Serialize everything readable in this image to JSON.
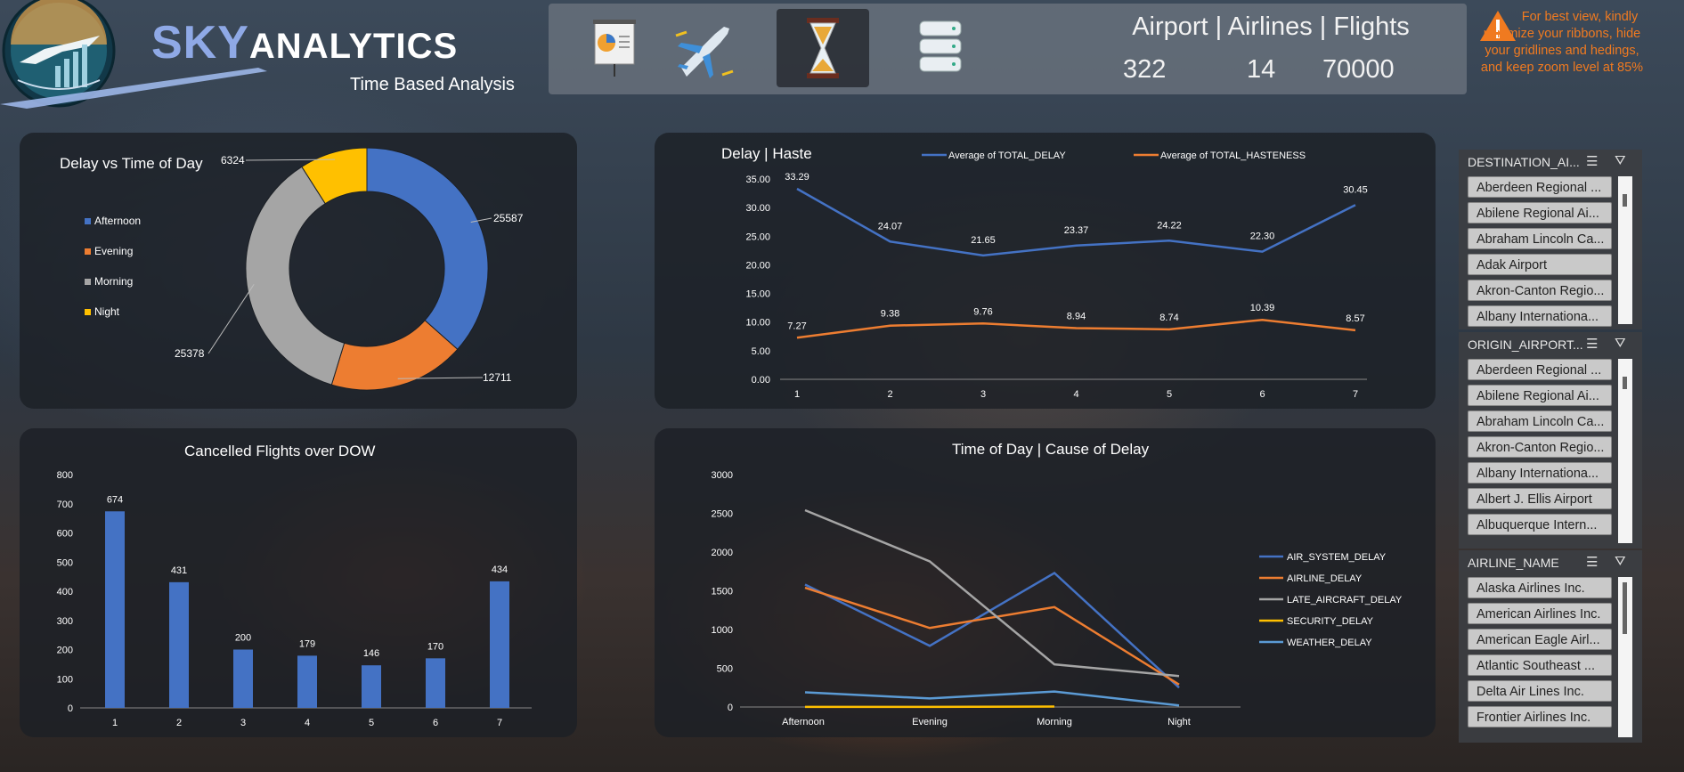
{
  "brand": {
    "name_part1": "SKY",
    "name_part2": "ANALYTICS",
    "subtitle": "Time Based Analysis"
  },
  "nav": {
    "icons": [
      "presentation-icon",
      "airplane-icon",
      "hourglass-icon",
      "database-icon"
    ],
    "active": 2
  },
  "stats": {
    "labels": "Airport  |  Airlines  |  Flights",
    "airport": "322",
    "airlines": "14",
    "flights": "70000"
  },
  "notice": {
    "icon": "warning-icon",
    "text": "For best view, kindly minimize your ribbons, hide your gridlines and hedings, and keep zoom level at 85%",
    "color": "#f07a20"
  },
  "slicers": [
    {
      "title": "DESTINATION_AI...",
      "items": [
        "Aberdeen Regional ...",
        "Abilene Regional Ai...",
        "Abraham Lincoln Ca...",
        "Adak Airport",
        "Akron-Canton Regio...",
        "Albany Internationa..."
      ]
    },
    {
      "title": "ORIGIN_AIRPORT...",
      "items": [
        "Aberdeen Regional ...",
        "Abilene Regional Ai...",
        "Abraham Lincoln Ca...",
        "Akron-Canton Regio...",
        "Albany Internationa...",
        "Albert J. Ellis Airport",
        "Albuquerque Intern..."
      ]
    },
    {
      "title": "AIRLINE_NAME",
      "items": [
        "Alaska Airlines Inc.",
        "American Airlines Inc.",
        "American Eagle Airl...",
        "Atlantic Southeast ...",
        "Delta Air Lines Inc.",
        "Frontier Airlines Inc."
      ]
    }
  ],
  "chart_data": [
    {
      "type": "pie",
      "title": "Delay vs Time of Day",
      "categories": [
        "Afternoon",
        "Evening",
        "Morning",
        "Night"
      ],
      "values": [
        25587,
        12711,
        25378,
        6324
      ],
      "colors": [
        "#4472c4",
        "#ed7d31",
        "#a5a5a5",
        "#ffc000"
      ],
      "donut": true,
      "legend": "left"
    },
    {
      "type": "line",
      "title": "Delay | Haste",
      "x": [
        1,
        2,
        3,
        4,
        5,
        6,
        7
      ],
      "series": [
        {
          "name": "Average of TOTAL_DELAY",
          "values": [
            33.29,
            24.07,
            21.65,
            23.37,
            24.22,
            22.3,
            30.45
          ],
          "color": "#4472c4"
        },
        {
          "name": "Average of TOTAL_HASTENESS",
          "values": [
            7.27,
            9.38,
            9.76,
            8.94,
            8.74,
            10.39,
            8.57
          ],
          "color": "#ed7d31"
        }
      ],
      "ylim": [
        0,
        35
      ],
      "yticks": [
        "0.00",
        "5.00",
        "10.00",
        "15.00",
        "20.00",
        "25.00",
        "30.00",
        "35.00"
      ],
      "value_labels": [
        [
          "33.29",
          "24.07",
          "21.65",
          "23.37",
          "24.22",
          "22.30",
          "30.45"
        ],
        [
          "7.27",
          "9.38",
          "9.76",
          "8.94",
          "8.74",
          "10.39",
          "8.57"
        ]
      ],
      "legend": "top"
    },
    {
      "type": "bar",
      "title": "Cancelled Flights over DOW",
      "categories": [
        "1",
        "2",
        "3",
        "4",
        "5",
        "6",
        "7"
      ],
      "values": [
        674,
        431,
        200,
        179,
        146,
        170,
        434
      ],
      "ylim": [
        0,
        800
      ],
      "yticks": [
        0,
        100,
        200,
        300,
        400,
        500,
        600,
        700,
        800
      ],
      "color": "#4472c4"
    },
    {
      "type": "line",
      "title": "Time of Day | Cause of Delay",
      "categories": [
        "Afternoon",
        "Evening",
        "Morning",
        "Night"
      ],
      "series": [
        {
          "name": "AIR_SYSTEM_DELAY",
          "values": [
            1580,
            790,
            1730,
            250
          ],
          "color": "#4472c4"
        },
        {
          "name": "AIRLINE_DELAY",
          "values": [
            1540,
            1020,
            1290,
            290
          ],
          "color": "#ed7d31"
        },
        {
          "name": "LATE_AIRCRAFT_DELAY",
          "values": [
            2540,
            1880,
            550,
            400
          ],
          "color": "#a5a5a5"
        },
        {
          "name": "SECURITY_DELAY",
          "values": [
            2,
            2,
            6,
            null
          ],
          "color": "#ffc000"
        },
        {
          "name": "WEATHER_DELAY",
          "values": [
            190,
            110,
            200,
            20
          ],
          "color": "#5b9bd5"
        }
      ],
      "ylim": [
        0,
        3000
      ],
      "yticks": [
        0,
        500,
        1000,
        1500,
        2000,
        2500,
        3000
      ],
      "legend": "right"
    }
  ]
}
